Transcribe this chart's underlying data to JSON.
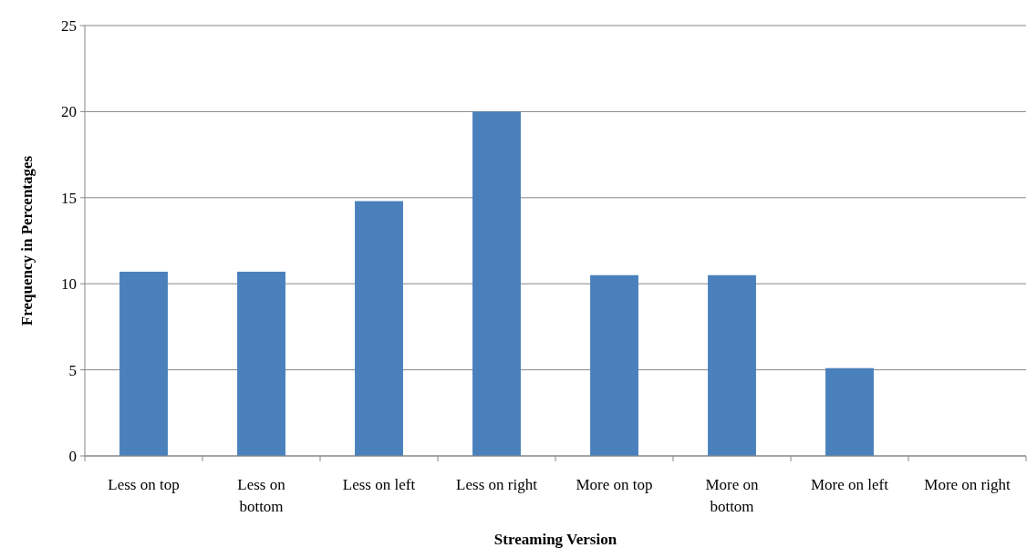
{
  "chart_data": {
    "type": "bar",
    "xlabel": "Streaming Version",
    "ylabel": "Frequency in Percentages",
    "categories": [
      "Less on top",
      "Less on bottom",
      "Less on left",
      "Less on right",
      "More on top",
      "More on bottom",
      "More on left",
      "More on right"
    ],
    "values": [
      10.7,
      10.7,
      14.8,
      20,
      10.5,
      10.5,
      5.1,
      0
    ],
    "color": "#4a81bd",
    "ylim": [
      0,
      25
    ],
    "yticks": [
      0,
      5,
      10,
      15,
      20,
      25
    ],
    "grid": "y"
  }
}
